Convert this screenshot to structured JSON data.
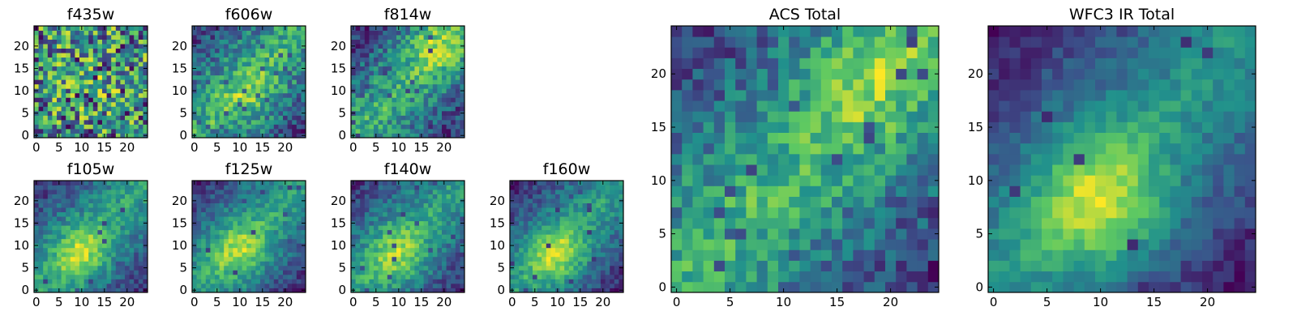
{
  "figure": {
    "colormap": "viridis",
    "colormap_stops": [
      "#440154",
      "#3b528b",
      "#21918c",
      "#5ec962",
      "#fde725"
    ]
  },
  "chart_data": [
    {
      "type": "heatmap",
      "title": "f435w",
      "xticks": [
        "0",
        "5",
        "10",
        "15",
        "20"
      ],
      "yticks": [
        "0",
        "5",
        "10",
        "15",
        "20"
      ],
      "xlim": [
        -0.5,
        24.5
      ],
      "ylim": [
        -0.5,
        24.5
      ],
      "grid_size": 25,
      "structure": "noise",
      "hotspot": [
        12,
        12
      ],
      "hotspot_strength": 0.1,
      "noise_level": 0.55,
      "dark_pixel_rate": 0.07,
      "seed": 11
    },
    {
      "type": "heatmap",
      "title": "f606w",
      "xticks": [
        "0",
        "5",
        "10",
        "15",
        "20"
      ],
      "yticks": [
        "0",
        "5",
        "10",
        "15",
        "20"
      ],
      "xlim": [
        -0.5,
        24.5
      ],
      "ylim": [
        -0.5,
        24.5
      ],
      "grid_size": 25,
      "structure": "diagonal",
      "hotspot": [
        12,
        9
      ],
      "hotspot_strength": 0.35,
      "noise_level": 0.45,
      "dark_pixel_rate": 0.05,
      "seed": 23
    },
    {
      "type": "heatmap",
      "title": "f814w",
      "xticks": [
        "0",
        "5",
        "10",
        "15",
        "20"
      ],
      "yticks": [
        "0",
        "5",
        "10",
        "15",
        "20"
      ],
      "xlim": [
        -0.5,
        24.5
      ],
      "ylim": [
        -0.5,
        24.5
      ],
      "grid_size": 25,
      "structure": "diagonal",
      "hotspot": [
        18,
        20
      ],
      "hotspot_strength": 0.45,
      "noise_level": 0.4,
      "dark_pixel_rate": 0.04,
      "seed": 37
    },
    {
      "type": "heatmap",
      "title": "f105w",
      "xticks": [
        "0",
        "5",
        "10",
        "15",
        "20"
      ],
      "yticks": [
        "0",
        "5",
        "10",
        "15",
        "20"
      ],
      "xlim": [
        -0.5,
        24.5
      ],
      "ylim": [
        -0.5,
        24.5
      ],
      "grid_size": 25,
      "structure": "diagonal",
      "hotspot": [
        10,
        8
      ],
      "hotspot_strength": 0.6,
      "noise_level": 0.3,
      "dark_pixel_rate": 0.02,
      "seed": 41
    },
    {
      "type": "heatmap",
      "title": "f125w",
      "xticks": [
        "0",
        "5",
        "10",
        "15",
        "20"
      ],
      "yticks": [
        "0",
        "5",
        "10",
        "15",
        "20"
      ],
      "xlim": [
        -0.5,
        24.5
      ],
      "ylim": [
        -0.5,
        24.5
      ],
      "grid_size": 25,
      "structure": "diagonal",
      "hotspot": [
        10,
        9
      ],
      "hotspot_strength": 0.6,
      "noise_level": 0.3,
      "dark_pixel_rate": 0.02,
      "seed": 53
    },
    {
      "type": "heatmap",
      "title": "f140w",
      "xticks": [
        "0",
        "5",
        "10",
        "15",
        "20"
      ],
      "yticks": [
        "0",
        "5",
        "10",
        "15",
        "20"
      ],
      "xlim": [
        -0.5,
        24.5
      ],
      "ylim": [
        -0.5,
        24.5
      ],
      "grid_size": 25,
      "structure": "diagonal",
      "hotspot": [
        10,
        8
      ],
      "hotspot_strength": 0.6,
      "noise_level": 0.32,
      "dark_pixel_rate": 0.03,
      "seed": 67
    },
    {
      "type": "heatmap",
      "title": "f160w",
      "xticks": [
        "0",
        "5",
        "10",
        "15",
        "20"
      ],
      "yticks": [
        "0",
        "5",
        "10",
        "15",
        "20"
      ],
      "xlim": [
        -0.5,
        24.5
      ],
      "ylim": [
        -0.5,
        24.5
      ],
      "grid_size": 25,
      "structure": "diagonal",
      "hotspot": [
        10,
        8
      ],
      "hotspot_strength": 0.7,
      "noise_level": 0.28,
      "dark_pixel_rate": 0.03,
      "seed": 79
    },
    {
      "type": "heatmap",
      "title": "ACS Total",
      "xticks": [
        "0",
        "5",
        "10",
        "15",
        "20"
      ],
      "yticks": [
        "0",
        "5",
        "10",
        "15",
        "20"
      ],
      "xlim": [
        -0.5,
        24.5
      ],
      "ylim": [
        -0.5,
        24.5
      ],
      "grid_size": 25,
      "structure": "diagonal",
      "hotspot": [
        18,
        20
      ],
      "hotspot_strength": 0.3,
      "noise_level": 0.35,
      "dark_pixel_rate": 0.04,
      "seed": 89
    },
    {
      "type": "heatmap",
      "title": "WFC3 IR Total",
      "xticks": [
        "0",
        "5",
        "10",
        "15",
        "20"
      ],
      "yticks": [
        "0",
        "5",
        "10",
        "15",
        "20"
      ],
      "xlim": [
        -0.5,
        24.5
      ],
      "ylim": [
        -0.5,
        24.5
      ],
      "grid_size": 25,
      "structure": "diagonal",
      "hotspot": [
        10,
        8
      ],
      "hotspot_strength": 0.75,
      "noise_level": 0.2,
      "dark_pixel_rate": 0.015,
      "seed": 97
    }
  ]
}
